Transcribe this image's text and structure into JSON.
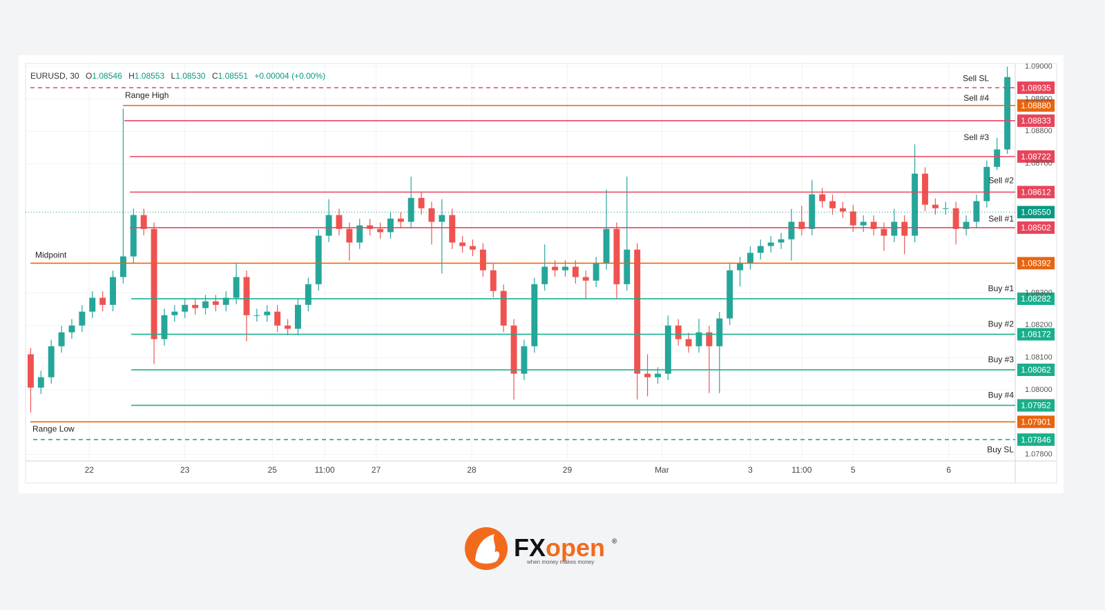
{
  "chart_data": {
    "type": "candlestick",
    "header": {
      "symbol": "EURUSD, 30",
      "fields": [
        {
          "key": "O",
          "value": "1.08546"
        },
        {
          "key": "H",
          "value": "1.08553"
        },
        {
          "key": "L",
          "value": "1.08530"
        },
        {
          "key": "C",
          "value": "1.08551"
        }
      ],
      "change": "+0.00004 (+0.00%)"
    },
    "up_color": "#26a69a",
    "down_color": "#ef5350",
    "open": [
      1.0811,
      1.08007,
      1.08039,
      1.08135,
      1.08178,
      1.08199,
      1.08242,
      1.08285,
      1.08263,
      1.08349,
      1.08413,
      1.08541,
      1.08498,
      1.08157,
      1.08231,
      1.08242,
      1.08263,
      1.08253,
      1.08274,
      1.08263,
      1.08285,
      1.08349,
      1.08231,
      1.08231,
      1.08242,
      1.08199,
      1.08189,
      1.08263,
      1.08327,
      1.08477,
      1.08541,
      1.08498,
      1.08456,
      1.08509,
      1.08498,
      1.08488,
      1.0853,
      1.0852,
      1.08594,
      1.08562,
      1.0852,
      1.08541,
      1.08456,
      1.08445,
      1.08434,
      1.0837,
      1.08306,
      1.08199,
      1.0805,
      1.08135,
      1.08327,
      1.08381,
      1.0837,
      1.08381,
      1.08349,
      1.08338,
      1.08392,
      1.08498,
      1.08327,
      1.08434,
      1.0805,
      1.08039,
      1.0805,
      1.08199,
      1.08157,
      1.08135,
      1.08178,
      1.08135,
      1.08221,
      1.0837,
      1.08392,
      1.08424,
      1.08445,
      1.08456,
      1.08466,
      1.0852,
      1.08498,
      1.08605,
      1.08584,
      1.08562,
      1.08552,
      1.08509,
      1.0852,
      1.08498,
      1.08477,
      1.0852,
      1.08477,
      1.08669,
      1.08573,
      1.08562,
      1.08562,
      1.08498,
      1.0852,
      1.08584,
      1.0869,
      1.08744
    ],
    "high": [
      1.0813,
      1.08059,
      1.08155,
      1.08198,
      1.08219,
      1.08262,
      1.08305,
      1.08305,
      1.08369,
      1.0887,
      1.08561,
      1.08561,
      1.08518,
      1.08251,
      1.08262,
      1.08283,
      1.08283,
      1.08294,
      1.08294,
      1.08305,
      1.0839,
      1.08369,
      1.08251,
      1.08262,
      1.08262,
      1.08219,
      1.08283,
      1.08347,
      1.08497,
      1.0859,
      1.08561,
      1.08518,
      1.08529,
      1.08529,
      1.08518,
      1.0855,
      1.0855,
      1.0866,
      1.08614,
      1.08582,
      1.0859,
      1.08561,
      1.08476,
      1.08465,
      1.08454,
      1.0839,
      1.08326,
      1.08219,
      1.08155,
      1.08347,
      1.0845,
      1.08401,
      1.08401,
      1.08401,
      1.08369,
      1.08412,
      1.0862,
      1.08518,
      1.0866,
      1.08454,
      1.0811,
      1.0807,
      1.0823,
      1.08219,
      1.08177,
      1.0822,
      1.08198,
      1.08241,
      1.0839,
      1.08412,
      1.08444,
      1.08465,
      1.08476,
      1.08486,
      1.0856,
      1.0857,
      1.0865,
      1.08625,
      1.08604,
      1.08582,
      1.08572,
      1.0854,
      1.0854,
      1.08518,
      1.0856,
      1.0854,
      1.0876,
      1.08689,
      1.08593,
      1.08582,
      1.08582,
      1.0854,
      1.08604,
      1.0871,
      1.0878,
      1.09
    ],
    "low": [
      1.0793,
      1.07987,
      1.08019,
      1.08115,
      1.08158,
      1.08179,
      1.08222,
      1.08243,
      1.08243,
      1.08329,
      1.08393,
      1.08478,
      1.0808,
      1.08137,
      1.08211,
      1.08222,
      1.08233,
      1.08233,
      1.08243,
      1.08243,
      1.08265,
      1.0815,
      1.08211,
      1.08211,
      1.08179,
      1.08169,
      1.08169,
      1.08243,
      1.08307,
      1.08457,
      1.08478,
      1.084,
      1.08436,
      1.08478,
      1.08468,
      1.08468,
      1.085,
      1.085,
      1.08542,
      1.0845,
      1.0836,
      1.08436,
      1.08425,
      1.08414,
      1.0835,
      1.08286,
      1.08179,
      1.0797,
      1.0803,
      1.08115,
      1.08307,
      1.0835,
      1.0835,
      1.08329,
      1.0828,
      1.08318,
      1.08372,
      1.0828,
      1.08307,
      1.0797,
      1.0798,
      1.08019,
      1.0803,
      1.08137,
      1.08115,
      1.08115,
      1.0799,
      1.0799,
      1.08201,
      1.0832,
      1.08372,
      1.08404,
      1.08425,
      1.08436,
      1.084,
      1.08478,
      1.08478,
      1.08564,
      1.08542,
      1.08532,
      1.08489,
      1.08489,
      1.08478,
      1.0843,
      1.08457,
      1.0842,
      1.08457,
      1.08553,
      1.08542,
      1.08542,
      1.0845,
      1.08478,
      1.085,
      1.08564,
      1.0868,
      1.0873
    ],
    "close": [
      1.08007,
      1.08039,
      1.08135,
      1.08178,
      1.08199,
      1.08242,
      1.08285,
      1.08263,
      1.08349,
      1.08413,
      1.08541,
      1.08498,
      1.08157,
      1.08231,
      1.08242,
      1.08263,
      1.08253,
      1.08274,
      1.08263,
      1.08285,
      1.08349,
      1.08231,
      1.08231,
      1.08242,
      1.08199,
      1.08189,
      1.08263,
      1.08327,
      1.08477,
      1.08541,
      1.08498,
      1.08456,
      1.08509,
      1.08498,
      1.08488,
      1.0853,
      1.0852,
      1.08594,
      1.08562,
      1.0852,
      1.08541,
      1.08456,
      1.08445,
      1.08434,
      1.0837,
      1.08306,
      1.08199,
      1.0805,
      1.08135,
      1.08327,
      1.08381,
      1.0837,
      1.08381,
      1.08349,
      1.08338,
      1.08392,
      1.08498,
      1.08327,
      1.08434,
      1.0805,
      1.08039,
      1.0805,
      1.08199,
      1.08157,
      1.08135,
      1.08178,
      1.08135,
      1.08221,
      1.0837,
      1.08392,
      1.08424,
      1.08445,
      1.08456,
      1.08466,
      1.0852,
      1.08498,
      1.08605,
      1.08584,
      1.08562,
      1.08552,
      1.08509,
      1.0852,
      1.08498,
      1.08477,
      1.0852,
      1.08477,
      1.08669,
      1.08573,
      1.08562,
      1.08562,
      1.08498,
      1.0852,
      1.08584,
      1.0869,
      1.08744,
      1.08968
    ],
    "xlim": [
      0,
      96
    ],
    "xticks": [
      {
        "value": 6.2,
        "label": "22"
      },
      {
        "value": 15.5,
        "label": "23"
      },
      {
        "value": 24,
        "label": "25"
      },
      {
        "value": 29.1,
        "label": "11:00"
      },
      {
        "value": 34.1,
        "label": "27"
      },
      {
        "value": 43.4,
        "label": "28"
      },
      {
        "value": 52.7,
        "label": "29"
      },
      {
        "value": 61.9,
        "label": "Mar"
      },
      {
        "value": 70.5,
        "label": "3"
      },
      {
        "value": 75.5,
        "label": "11:00"
      },
      {
        "value": 80.5,
        "label": "5"
      },
      {
        "value": 89.8,
        "label": "6"
      }
    ],
    "ylim": [
      1.0778,
      1.0901
    ],
    "yticks": [
      {
        "value": 1.09,
        "label": "1.09000"
      },
      {
        "value": 1.089,
        "label": "1.08900"
      },
      {
        "value": 1.088,
        "label": "1.08800"
      },
      {
        "value": 1.087,
        "label": "1.08700"
      },
      {
        "value": 1.083,
        "label": "1.08300"
      },
      {
        "value": 1.082,
        "label": "1.08200"
      },
      {
        "value": 1.081,
        "label": "1.08100"
      },
      {
        "value": 1.08,
        "label": "1.08000"
      },
      {
        "value": 1.078,
        "label": "1.07800"
      }
    ],
    "current_price": {
      "value": 1.0855,
      "value_label": "1.08550",
      "color": "#089981"
    },
    "levels": [
      {
        "name": "Sell SL",
        "value": 1.08935,
        "value_label": "1.08935",
        "color": "#e8445a",
        "dashed": true
      },
      {
        "name": "Range High",
        "value": 1.0888,
        "value_label": "1.08880",
        "color": "#e8650f",
        "dashed": false
      },
      {
        "name": "Sell #4",
        "value": 1.08833,
        "value_label": "1.08833",
        "color": "#e8445a",
        "dashed": false
      },
      {
        "name": "Sell #3",
        "value": 1.08722,
        "value_label": "1.08722",
        "color": "#e8445a",
        "dashed": false
      },
      {
        "name": "Sell #2",
        "value": 1.08612,
        "value_label": "1.08612",
        "color": "#e8445a",
        "dashed": false
      },
      {
        "name": "Sell #1",
        "value": 1.08502,
        "value_label": "1.08502",
        "color": "#e8445a",
        "dashed": false
      },
      {
        "name": "Midpoint",
        "value": 1.08392,
        "value_label": "1.08392",
        "color": "#e8650f",
        "dashed": false
      },
      {
        "name": "Buy #1",
        "value": 1.08282,
        "value_label": "1.08282",
        "color": "#1aaf8b",
        "dashed": false
      },
      {
        "name": "Buy #2",
        "value": 1.08172,
        "value_label": "1.08172",
        "color": "#1aaf8b",
        "dashed": false
      },
      {
        "name": "Buy #3",
        "value": 1.08062,
        "value_label": "1.08062",
        "color": "#1aaf8b",
        "dashed": false
      },
      {
        "name": "Buy #4",
        "value": 1.07952,
        "value_label": "1.07952",
        "color": "#1aaf8b",
        "dashed": false
      },
      {
        "name": "Range Low",
        "value": 1.07901,
        "value_label": "1.07901",
        "color": "#e8650f",
        "dashed": false
      },
      {
        "name": "Buy SL",
        "value": 1.07846,
        "value_label": "1.07846",
        "color": "#1aaf8b",
        "dashed": true
      }
    ]
  },
  "logo": {
    "brand_a": "FX",
    "brand_b": "open",
    "mark": "®",
    "tagline": "when money makes money"
  }
}
